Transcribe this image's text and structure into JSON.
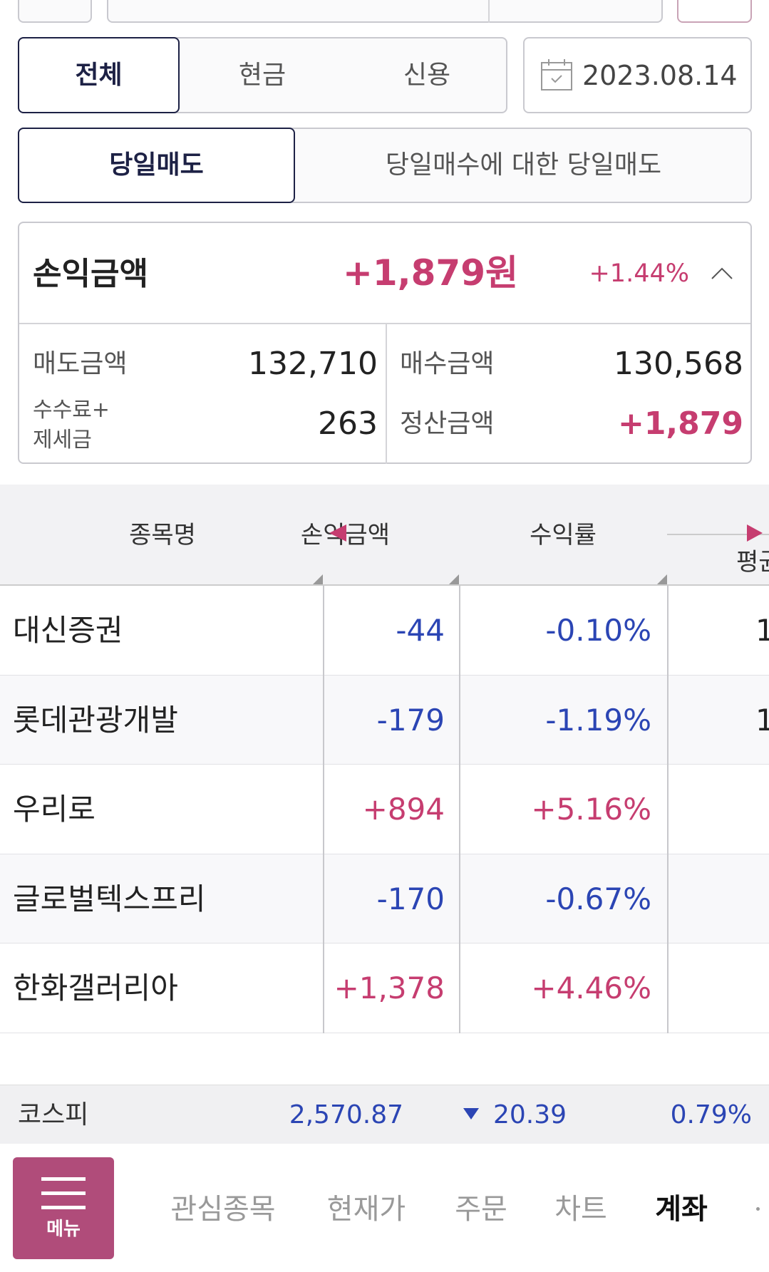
{
  "filters": {
    "account_tabs": [
      "전체",
      "현금",
      "신용"
    ],
    "date": "2023.08.14",
    "sale_tabs": [
      "당일매도",
      "당일매수에 대한 당일매도"
    ]
  },
  "summary": {
    "label": "손익금액",
    "amount": "+1,879원",
    "rate": "+1.44%",
    "items": [
      {
        "label": "매도금액",
        "value": "132,710"
      },
      {
        "label": "매수금액",
        "value": "130,568"
      },
      {
        "label": "수수료+\n제세금",
        "value": "263"
      },
      {
        "label": "정산금액",
        "value": "+1,879"
      }
    ]
  },
  "table": {
    "headers": [
      "종목명",
      "손익금액",
      "수익률",
      "평균"
    ],
    "rows": [
      [
        "대신증권",
        "-44",
        "-0.10%",
        "1"
      ],
      [
        "롯데관광개발",
        "-179",
        "-1.19%",
        "1"
      ],
      [
        "우리로",
        "+894",
        "+5.16%",
        null
      ],
      [
        "글로벌텍스프리",
        "-170",
        "-0.67%",
        null
      ],
      [
        "한화갤러리아",
        "+1,378",
        "+4.46%",
        null
      ]
    ]
  },
  "index": {
    "name": "코스피",
    "value": "2,570.87",
    "change": "20.39",
    "rate": "0.79%"
  },
  "nav": {
    "menu": "메뉴",
    "items": [
      "관심종목",
      "현재가",
      "주문",
      "차트",
      "계좌"
    ]
  }
}
